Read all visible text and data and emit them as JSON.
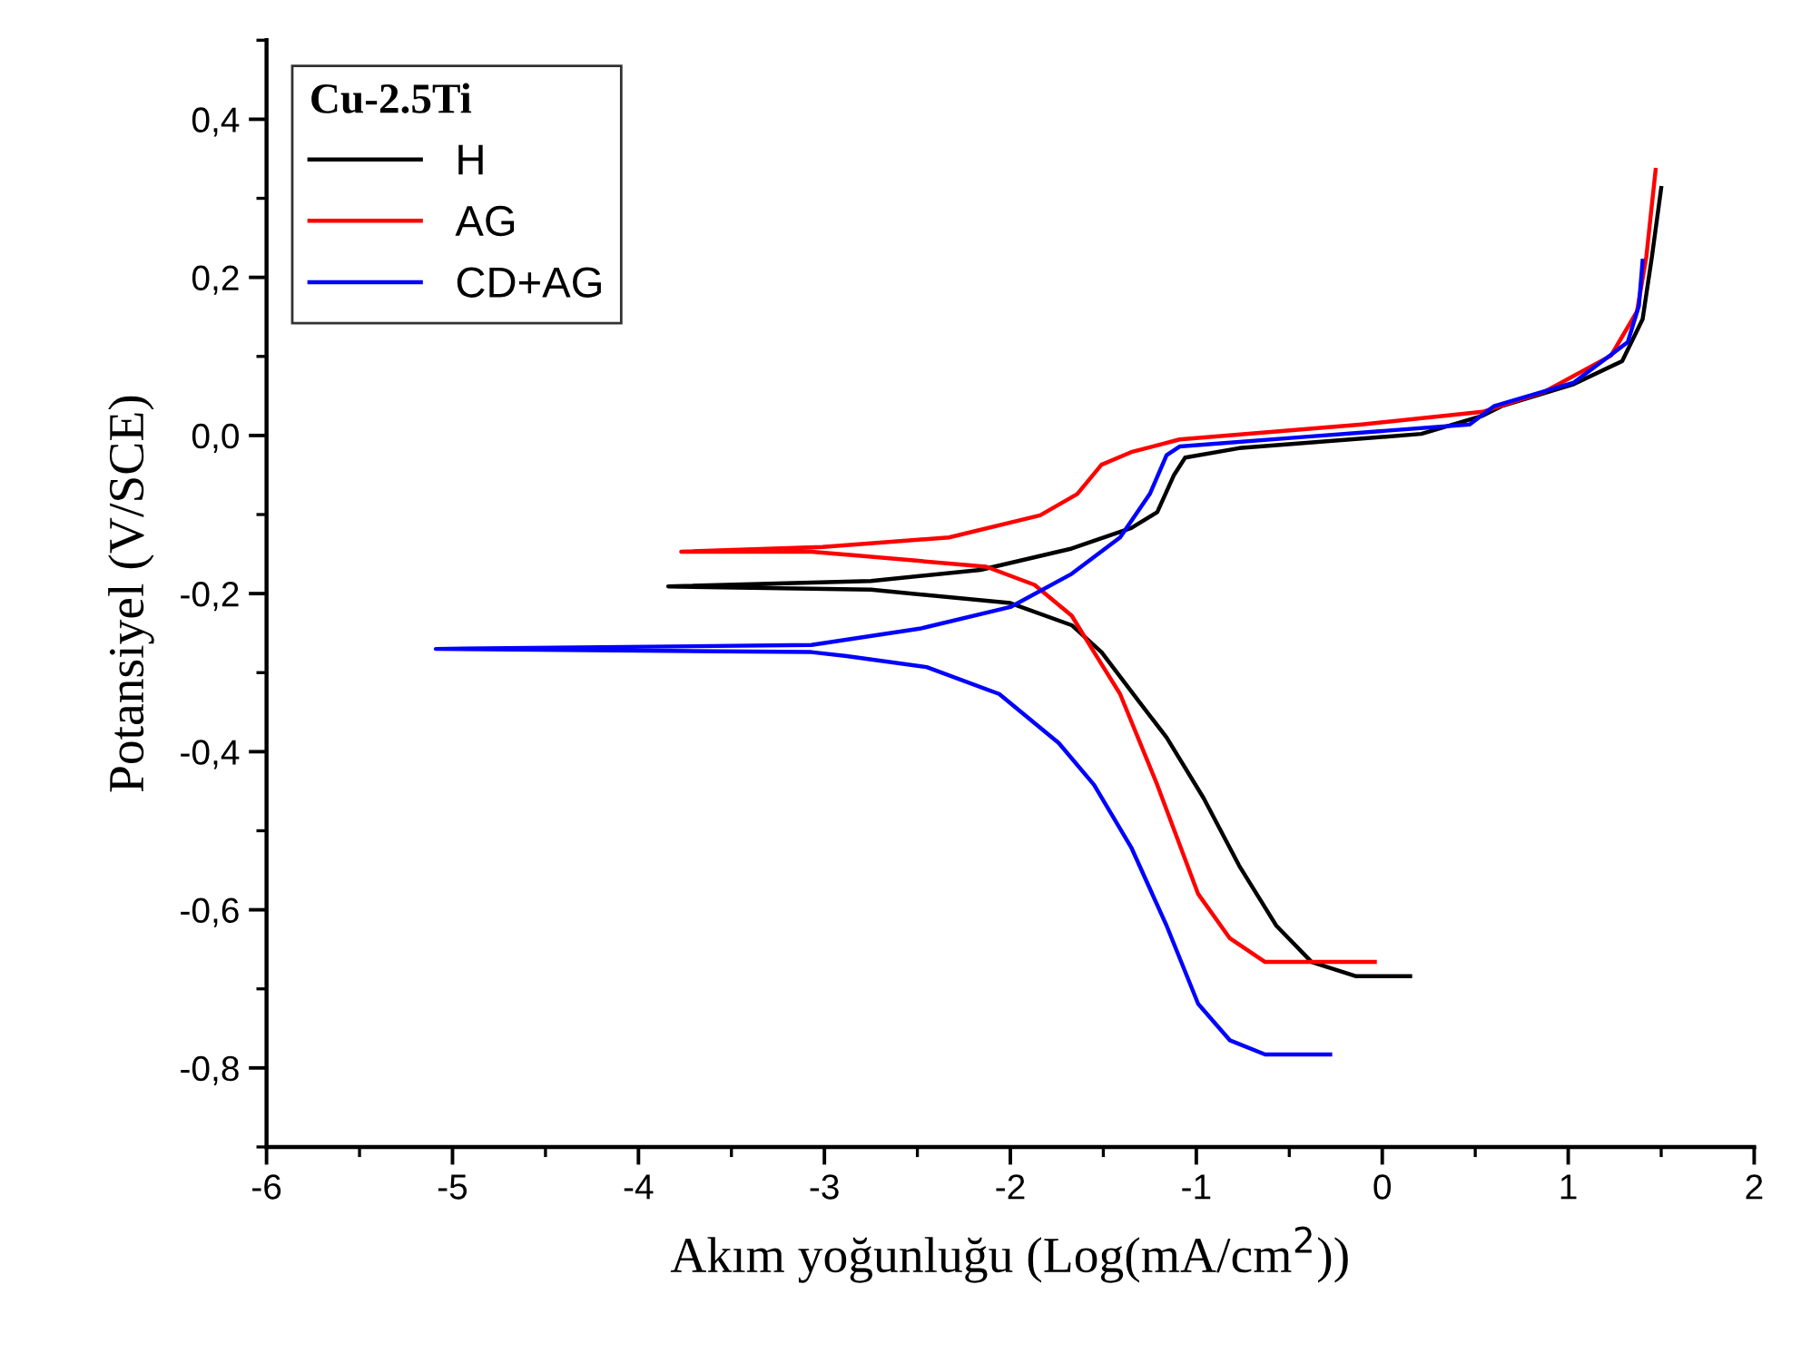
{
  "chart_data": {
    "type": "line",
    "xlabel": "Akım yoğunluğu (Log(mA/cm$^{2}$))",
    "ylabel": "Potansiyel (V/SCE)",
    "legend_title": "Cu-2.5Ti",
    "legend": "top left",
    "grid": false,
    "line_style": "solid",
    "marker": "none",
    "xlim": [
      -6,
      2
    ],
    "ylim": [
      -0.9,
      0.5
    ],
    "xticks": [
      -6,
      {
        "value": -5.5,
        "label": null
      },
      -5,
      {
        "value": -4.5,
        "label": null
      },
      -4,
      {
        "value": -3.5,
        "label": null
      },
      -3,
      {
        "value": -2.5,
        "label": null
      },
      -2,
      {
        "value": -1.5,
        "label": null
      },
      -1,
      {
        "value": -0.5,
        "label": null
      },
      0,
      {
        "value": 0.5,
        "label": null
      },
      1,
      {
        "value": 1.5,
        "label": null
      },
      2
    ],
    "yticks": [
      {
        "value": -0.9,
        "label": null
      },
      {
        "value": -0.8,
        "label": "-0,8"
      },
      {
        "value": -0.7,
        "label": null
      },
      {
        "value": -0.6,
        "label": "-0,6"
      },
      {
        "value": -0.5,
        "label": null
      },
      {
        "value": -0.4,
        "label": "-0,4"
      },
      {
        "value": -0.3,
        "label": null
      },
      {
        "value": -0.2,
        "label": "-0,2"
      },
      {
        "value": -0.1,
        "label": null
      },
      {
        "value": 0.0,
        "label": "0,0"
      },
      {
        "value": 0.1,
        "label": null
      },
      {
        "value": 0.2,
        "label": "0,2"
      },
      {
        "value": 0.3,
        "label": null
      },
      {
        "value": 0.4,
        "label": "0,4"
      },
      {
        "value": 0.5,
        "label": null
      }
    ],
    "series": [
      {
        "name": "H",
        "color": "#000000",
        "x": [
          0.15,
          -0.14,
          -0.38,
          -0.57,
          -0.77,
          -0.96,
          -1.16,
          -1.31,
          -1.51,
          -1.67,
          -2.0,
          -2.75,
          -3.84,
          -2.75,
          -2.16,
          -1.67,
          -1.35,
          -1.21,
          -1.12,
          -1.06,
          -0.77,
          0.21,
          0.54,
          0.64,
          1.03,
          1.29,
          1.4,
          1.45,
          1.5
        ],
        "values": [
          -0.684,
          -0.684,
          -0.666,
          -0.62,
          -0.544,
          -0.459,
          -0.382,
          -0.336,
          -0.274,
          -0.24,
          -0.212,
          -0.195,
          -0.191,
          -0.184,
          -0.17,
          -0.143,
          -0.117,
          -0.097,
          -0.05,
          -0.028,
          -0.016,
          0.002,
          0.025,
          0.037,
          0.065,
          0.094,
          0.147,
          0.226,
          0.313
        ]
      },
      {
        "name": "AG",
        "color": "#ff0000",
        "x": [
          -0.04,
          -0.63,
          -0.82,
          -0.99,
          -1.21,
          -1.41,
          -1.55,
          -1.67,
          -1.87,
          -2.13,
          -2.82,
          -3.07,
          -3.77,
          -3.01,
          -2.33,
          -1.84,
          -1.64,
          -1.51,
          -1.35,
          -1.09,
          -0.11,
          0.54,
          0.87,
          1.23,
          1.37,
          1.42,
          1.47
        ],
        "values": [
          -0.666,
          -0.666,
          -0.636,
          -0.58,
          -0.442,
          -0.327,
          -0.274,
          -0.228,
          -0.189,
          -0.166,
          -0.152,
          -0.147,
          -0.147,
          -0.141,
          -0.129,
          -0.101,
          -0.074,
          -0.037,
          -0.021,
          -0.005,
          0.014,
          0.03,
          0.055,
          0.101,
          0.157,
          0.226,
          0.336
        ]
      },
      {
        "name": "CD+AG",
        "color": "#0000ff",
        "x": [
          -0.28,
          -0.63,
          -0.82,
          -0.99,
          -1.16,
          -1.35,
          -1.55,
          -1.74,
          -2.06,
          -2.45,
          -2.88,
          -3.07,
          -5.09,
          -3.07,
          -2.48,
          -2.0,
          -1.67,
          -1.41,
          -1.25,
          -1.16,
          -1.09,
          -0.43,
          0.47,
          0.6,
          1.03,
          1.32,
          1.38,
          1.4
        ],
        "values": [
          -0.783,
          -0.783,
          -0.765,
          -0.719,
          -0.62,
          -0.521,
          -0.442,
          -0.389,
          -0.327,
          -0.293,
          -0.279,
          -0.274,
          -0.27,
          -0.265,
          -0.244,
          -0.217,
          -0.175,
          -0.129,
          -0.074,
          -0.025,
          -0.014,
          -0.002,
          0.014,
          0.037,
          0.067,
          0.118,
          0.164,
          0.221
        ]
      }
    ]
  }
}
